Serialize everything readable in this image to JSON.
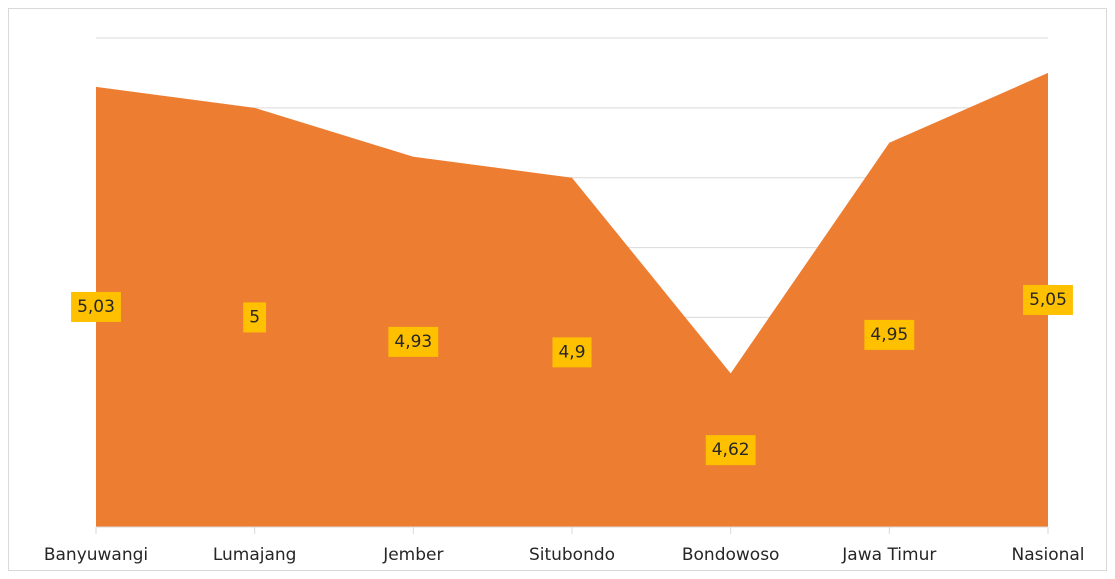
{
  "chart_data": {
    "type": "area",
    "categories": [
      "Banyuwangi",
      "Lumajang",
      "Jember",
      "Situbondo",
      "Bondowoso",
      "Jawa Timur",
      "Nasional"
    ],
    "values": [
      5.03,
      5.0,
      4.93,
      4.9,
      4.62,
      4.95,
      5.05
    ],
    "value_labels": [
      "5,03",
      "5",
      "4,93",
      "4,9",
      "4,62",
      "4,95",
      "5,05"
    ],
    "color": "#ed7d31",
    "label_color": "#ffc000",
    "ylim": [
      4.4,
      5.1
    ],
    "yticks": [
      4.4,
      4.5,
      4.6,
      4.7,
      4.8,
      4.9,
      5.0,
      5.1
    ],
    "grid": true
  }
}
